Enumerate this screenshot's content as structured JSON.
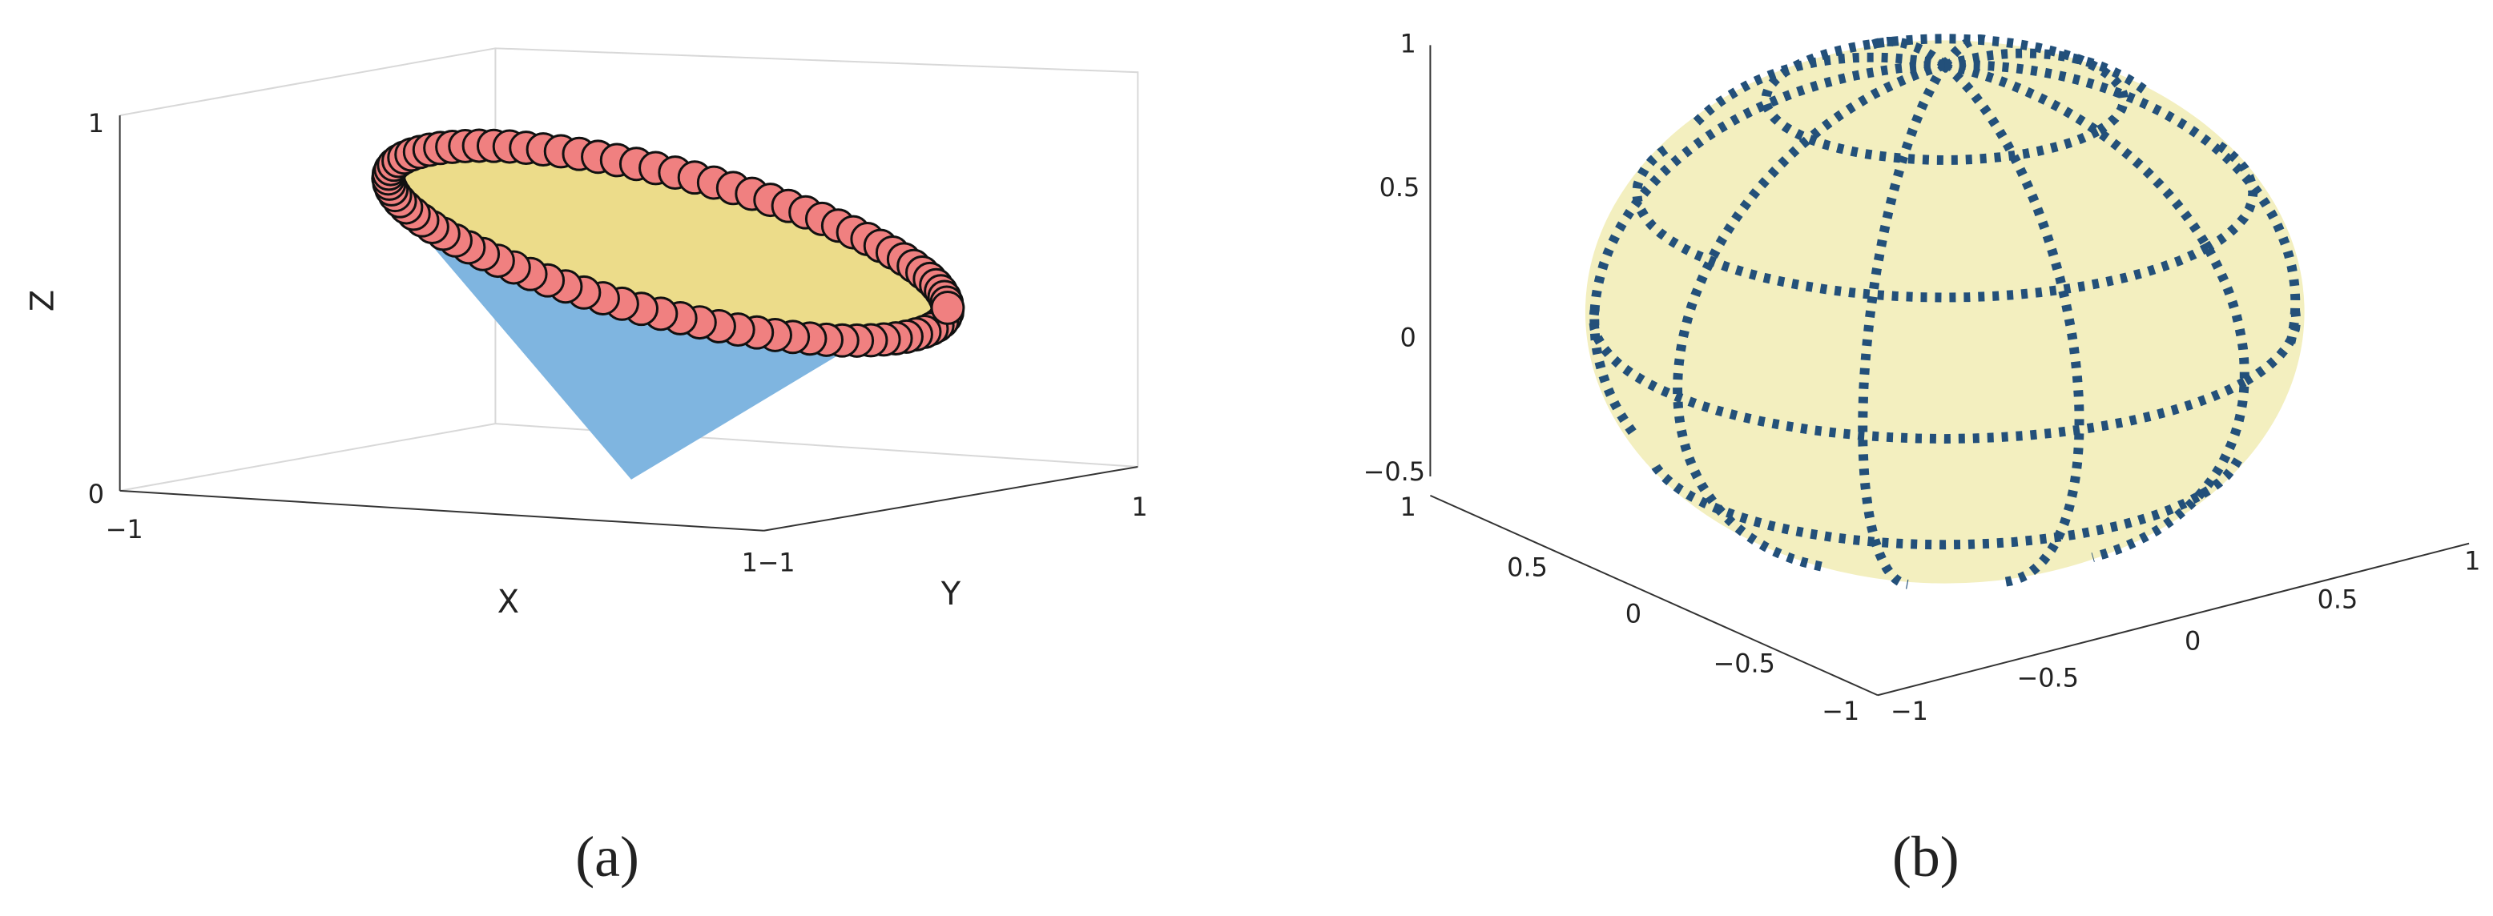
{
  "panel_a": {
    "caption": "(a)",
    "x_label": "X",
    "y_label": "Y",
    "z_label": "Z",
    "z_ticks": [
      "0",
      "1"
    ],
    "x_ticks": [
      "−1",
      "1"
    ],
    "y_ticks": [
      "−1",
      "1"
    ]
  },
  "panel_b": {
    "caption": "(b)",
    "z_ticks": [
      "−0.5",
      "0",
      "0.5",
      "1"
    ],
    "x_ticks": [
      "1",
      "0.5",
      "0",
      "−0.5",
      "−1"
    ],
    "y_ticks": [
      "−1",
      "−0.5",
      "0",
      "0.5",
      "1"
    ]
  }
}
